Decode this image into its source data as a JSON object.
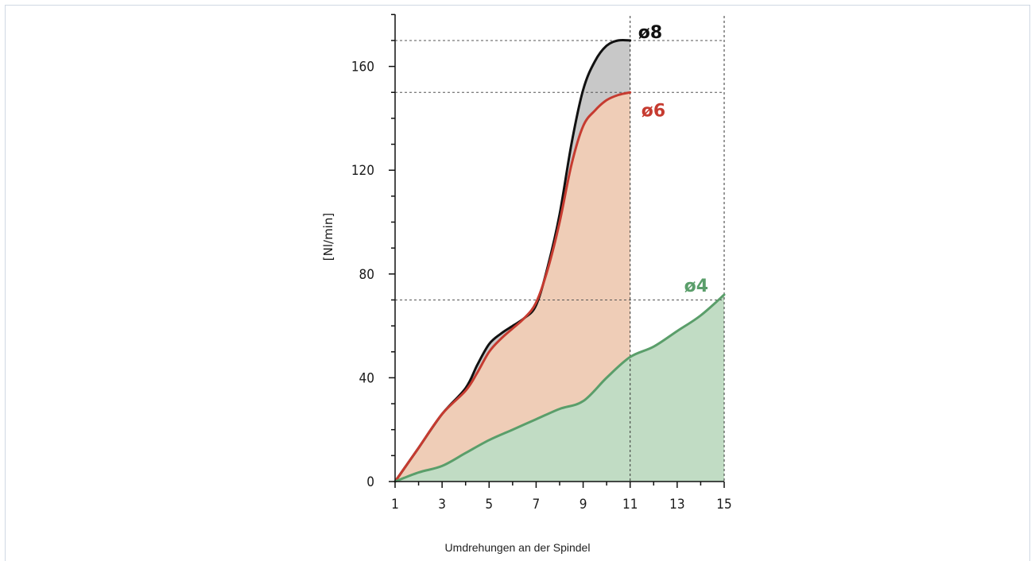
{
  "chart_data": {
    "type": "area",
    "xlabel": "Umdrehungen an der Spindel",
    "ylabel": "[Nl/min]",
    "xlim": [
      1,
      15
    ],
    "ylim": [
      0,
      180
    ],
    "xticks": [
      1,
      3,
      5,
      7,
      9,
      11,
      13,
      15
    ],
    "yticks": [
      0,
      40,
      80,
      120,
      160
    ],
    "reference_lines": {
      "horizontal": [
        170,
        150,
        70
      ],
      "vertical": [
        11,
        15
      ]
    },
    "series": [
      {
        "name": "ø8",
        "color": "#111111",
        "fill": "#c8c8c8",
        "x": [
          1,
          2,
          3,
          4,
          4.5,
          5,
          5.5,
          6,
          6.5,
          7,
          7.5,
          8,
          8.5,
          9,
          9.5,
          10,
          10.5,
          11
        ],
        "values": [
          0,
          13,
          26,
          36,
          45,
          53,
          57,
          60,
          63,
          68,
          83,
          103,
          130,
          151,
          162,
          168,
          170,
          170
        ]
      },
      {
        "name": "ø6",
        "color": "#c63b30",
        "fill": "#efcdb7",
        "x": [
          1,
          2,
          3,
          4,
          4.5,
          5,
          5.5,
          6,
          6.5,
          7,
          7.5,
          8,
          8.5,
          9,
          9.5,
          10,
          10.5,
          11
        ],
        "values": [
          0,
          13,
          26,
          35,
          42,
          50,
          55,
          59,
          63,
          69,
          82,
          100,
          122,
          137,
          143,
          147,
          149,
          150
        ]
      },
      {
        "name": "ø4",
        "color": "#5a9e6a",
        "fill": "#c1dcc4",
        "x": [
          1,
          2,
          3,
          4,
          5,
          6,
          7,
          8,
          9,
          10,
          11,
          12,
          13,
          14,
          15
        ],
        "values": [
          0,
          3.5,
          6,
          11,
          16,
          20,
          24,
          28,
          31,
          40,
          48,
          52,
          58,
          64,
          72
        ]
      }
    ]
  }
}
